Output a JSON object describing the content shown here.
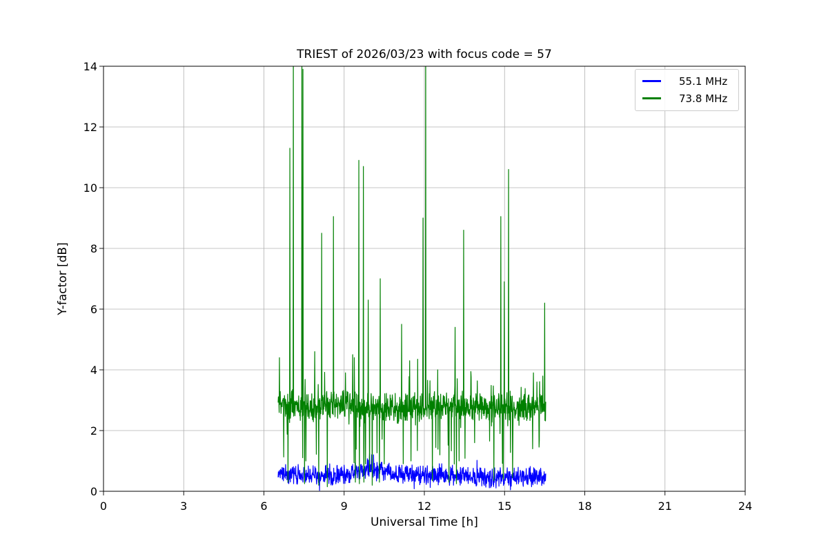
{
  "chart_data": {
    "type": "line",
    "title": "TRIEST of 2026/03/23 with focus code = 57",
    "xlabel": "Universal Time [h]",
    "ylabel": "Y-factor [dB]",
    "xlim": [
      0,
      24
    ],
    "ylim": [
      0,
      14
    ],
    "xticks": [
      0,
      3,
      6,
      9,
      12,
      15,
      18,
      21,
      24
    ],
    "yticks": [
      0,
      2,
      4,
      6,
      8,
      10,
      12,
      14
    ],
    "grid": true,
    "grid_color": "#b0b0b0",
    "background": "#ffffff",
    "legend_position": "upper right",
    "series": [
      {
        "name": "55.1 MHz",
        "color": "#0000ff",
        "t_start": 6.53,
        "t_end": 16.54,
        "step": 0.01,
        "seed": 3,
        "baseline": [
          [
            6.53,
            0.55
          ],
          [
            8.0,
            0.5
          ],
          [
            9.3,
            0.6
          ],
          [
            10.0,
            0.72
          ],
          [
            10.4,
            0.68
          ],
          [
            11.0,
            0.55
          ],
          [
            12.5,
            0.55
          ],
          [
            13.5,
            0.5
          ],
          [
            14.5,
            0.45
          ],
          [
            15.5,
            0.48
          ],
          [
            16.54,
            0.5
          ]
        ],
        "noise_amplitude": 0.38,
        "random_dips": {
          "probability": 0.006,
          "max_depth": 0.5
        },
        "random_spikes": {
          "probability": 0.01,
          "max_height": 0.35
        },
        "spikes": [
          [
            9.95,
            1.25
          ],
          [
            10.1,
            1.2
          ]
        ],
        "dips": []
      },
      {
        "name": "73.8 MHz",
        "color": "#008000",
        "t_start": 6.53,
        "t_end": 16.54,
        "step": 0.01,
        "seed": 11,
        "baseline": [
          [
            6.53,
            2.9
          ],
          [
            7.5,
            2.8
          ],
          [
            9.0,
            2.85
          ],
          [
            10.0,
            2.75
          ],
          [
            11.0,
            2.7
          ],
          [
            12.0,
            2.75
          ],
          [
            13.0,
            2.8
          ],
          [
            14.0,
            2.75
          ],
          [
            15.0,
            2.8
          ],
          [
            16.0,
            2.7
          ],
          [
            16.54,
            2.75
          ]
        ],
        "noise_amplitude": 0.55,
        "random_dips": {
          "probability": 0.035,
          "max_depth": 1.8
        },
        "random_spikes": {
          "probability": 0.02,
          "max_height": 1.1
        },
        "spikes": [
          [
            6.58,
            4.4
          ],
          [
            6.97,
            11.3
          ],
          [
            7.1,
            14.8
          ],
          [
            7.42,
            14.8
          ],
          [
            7.46,
            13.9
          ],
          [
            7.9,
            4.6
          ],
          [
            8.16,
            8.5
          ],
          [
            8.6,
            9.05
          ],
          [
            9.05,
            3.9
          ],
          [
            9.32,
            4.5
          ],
          [
            9.38,
            4.4
          ],
          [
            9.55,
            10.9
          ],
          [
            9.72,
            10.7
          ],
          [
            9.9,
            6.3
          ],
          [
            10.35,
            7.0
          ],
          [
            11.15,
            5.5
          ],
          [
            11.45,
            4.3
          ],
          [
            11.75,
            4.35
          ],
          [
            11.95,
            9.0
          ],
          [
            12.05,
            14.8
          ],
          [
            12.5,
            4.0
          ],
          [
            13.15,
            5.4
          ],
          [
            13.47,
            8.6
          ],
          [
            14.86,
            9.05
          ],
          [
            14.99,
            6.9
          ],
          [
            15.15,
            10.6
          ],
          [
            16.08,
            3.9
          ],
          [
            16.5,
            6.2
          ]
        ],
        "dips": [
          [
            6.9,
            0.3
          ],
          [
            7.52,
            0.25
          ],
          [
            7.57,
            1.0
          ],
          [
            8.05,
            0.2
          ],
          [
            8.37,
            0.15
          ],
          [
            9.42,
            0.3
          ],
          [
            9.57,
            0.25
          ],
          [
            9.74,
            0.3
          ],
          [
            9.8,
            0.9
          ],
          [
            10.05,
            0.2
          ],
          [
            10.32,
            0.3
          ],
          [
            10.5,
            0.9
          ],
          [
            11.5,
            1.0
          ],
          [
            12.3,
            0.35
          ],
          [
            12.58,
            1.2
          ],
          [
            12.92,
            0.3
          ],
          [
            13.2,
            0.25
          ],
          [
            13.3,
            1.0
          ],
          [
            14.6,
            0.35
          ],
          [
            14.95,
            0.4
          ],
          [
            15.3,
            0.45
          ],
          [
            16.05,
            1.4
          ]
        ]
      }
    ]
  }
}
